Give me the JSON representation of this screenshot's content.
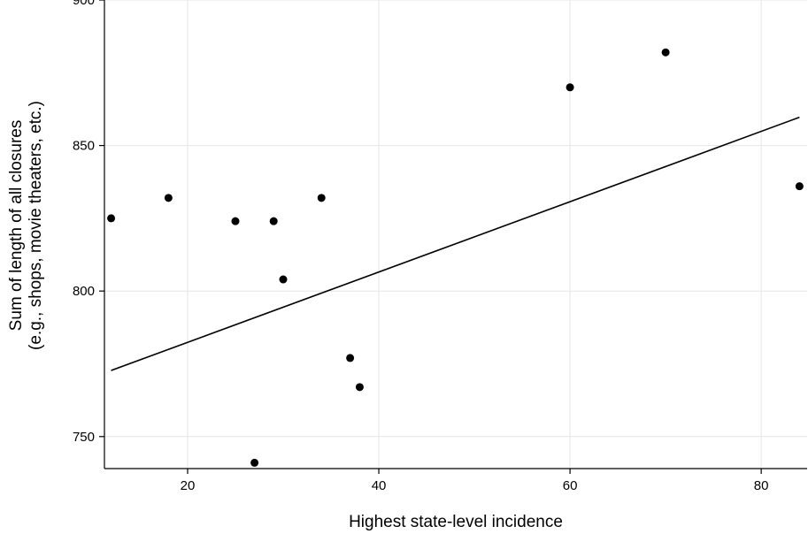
{
  "chart_data": {
    "type": "scatter",
    "title": "",
    "xlabel": "Highest state-level incidence",
    "ylabel_lines": [
      "Sum of length of all closures",
      "(e.g., shops, movie theaters, etc.)"
    ],
    "xlim": [
      11.3,
      84.8
    ],
    "ylim": [
      739,
      900
    ],
    "x_ticks": [
      20,
      40,
      60,
      80
    ],
    "y_ticks": [
      750,
      800,
      850,
      900
    ],
    "x_tick_labels": [
      "20",
      "40",
      "60",
      "80"
    ],
    "y_tick_labels": [
      "750",
      "800",
      "850",
      "900"
    ],
    "grid": true,
    "legend": "none",
    "series": [
      {
        "points": [
          {
            "x": 12,
            "y": 825
          },
          {
            "x": 18,
            "y": 832
          },
          {
            "x": 25,
            "y": 824
          },
          {
            "x": 27,
            "y": 741
          },
          {
            "x": 29,
            "y": 824
          },
          {
            "x": 30,
            "y": 804
          },
          {
            "x": 34,
            "y": 832
          },
          {
            "x": 37,
            "y": 777
          },
          {
            "x": 38,
            "y": 767
          },
          {
            "x": 60,
            "y": 870
          },
          {
            "x": 70,
            "y": 882
          },
          {
            "x": 84,
            "y": 836
          }
        ]
      }
    ],
    "fit_line": {
      "type": "linear",
      "points": [
        {
          "x": 12,
          "y": 772.7
        },
        {
          "x": 84,
          "y": 859.7
        }
      ]
    },
    "colors": {
      "points": "#000000",
      "line": "#000000",
      "grid": "#e6e6e6",
      "axis": "#000000"
    }
  }
}
